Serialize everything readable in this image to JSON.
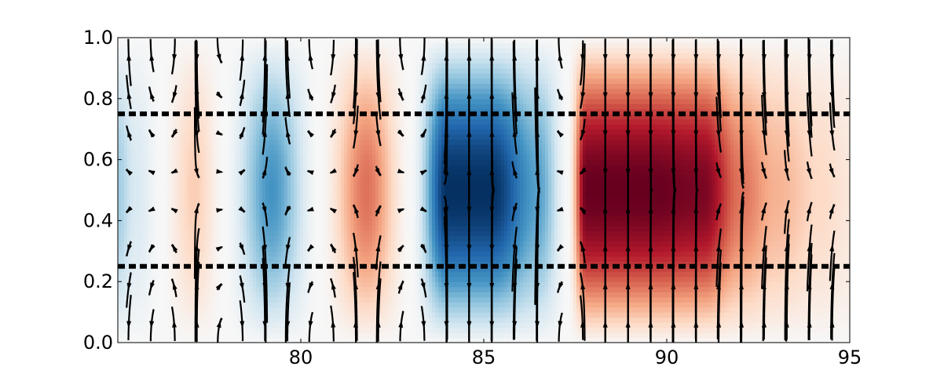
{
  "chart_data": {
    "type": "heatmap",
    "title": "",
    "xlabel": "",
    "ylabel": "",
    "xlim": [
      75,
      95
    ],
    "ylim": [
      0.0,
      1.0
    ],
    "xticks": [
      80,
      85,
      90,
      95
    ],
    "xtick_labels": [
      "80",
      "85",
      "90",
      "95"
    ],
    "yticks": [
      0.0,
      0.2,
      0.4,
      0.6,
      0.8,
      1.0
    ],
    "ytick_labels": [
      "0.0",
      "0.2",
      "0.4",
      "0.6",
      "0.8",
      "1.0"
    ],
    "grid": false,
    "colormap": "RdBu_r",
    "colormap_stops": [
      "#053061",
      "#2166ac",
      "#4393c3",
      "#92c5de",
      "#d1e5f0",
      "#f7f7f7",
      "#fddbc7",
      "#f4a582",
      "#d6604d",
      "#b2182b",
      "#67001f"
    ],
    "field_profile": {
      "x": [
        75,
        75.5,
        76.2,
        77.1,
        77.9,
        79.2,
        80.5,
        81.8,
        83.0,
        84.0,
        85.2,
        86.5,
        87.3,
        87.8,
        89.5,
        91.0,
        92.0,
        93.0,
        94.2,
        95
      ],
      "value": [
        -0.35,
        -0.15,
        0.0,
        0.25,
        0.0,
        -0.6,
        0.0,
        0.55,
        0.0,
        -1.0,
        -1.0,
        -0.55,
        0.0,
        1.0,
        1.0,
        0.95,
        0.55,
        0.35,
        0.2,
        0.12
      ]
    },
    "vertical_profile": "sin(pi*y)",
    "dashed_lines": [
      {
        "orientation": "horizontal",
        "y": 0.25,
        "style": "dotted",
        "color": "#000000"
      },
      {
        "orientation": "horizontal",
        "y": 0.75,
        "style": "dotted",
        "color": "#000000"
      }
    ],
    "overlay": {
      "type": "streamlines",
      "color": "#000000",
      "arrows": true
    }
  }
}
